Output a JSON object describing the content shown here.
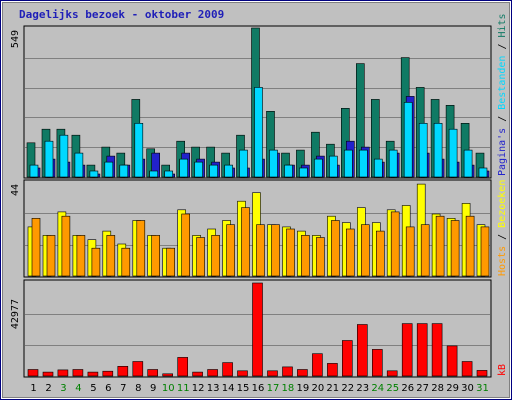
{
  "title": "Dagelijks bezoek - oktober 2009",
  "colors": {
    "frame_border": "#000080",
    "panel_bg": "#c0c0c0",
    "grid": "#808080",
    "weekday_label": "#000000",
    "weekend_label": "#008000",
    "hits": "#107a64",
    "pages": "#2222cc",
    "files": "#00d8ff",
    "visits": "#ffff00",
    "hosts": "#ff9900",
    "kb": "#ff0000",
    "legend_sep": "#000000"
  },
  "chart_data": [
    {
      "type": "bar",
      "panel": "top",
      "ymax_label": "549",
      "ylim": [
        0,
        549
      ],
      "grid": true,
      "categories": [
        "1",
        "2",
        "3",
        "4",
        "5",
        "6",
        "7",
        "8",
        "9",
        "10",
        "11",
        "12",
        "13",
        "14",
        "15",
        "16",
        "17",
        "18",
        "19",
        "20",
        "21",
        "22",
        "23",
        "24",
        "25",
        "26",
        "27",
        "28",
        "29",
        "30",
        "31"
      ],
      "weekend": [
        false,
        false,
        true,
        true,
        false,
        false,
        false,
        false,
        false,
        true,
        true,
        false,
        false,
        false,
        false,
        false,
        true,
        true,
        false,
        false,
        false,
        false,
        false,
        true,
        true,
        false,
        false,
        false,
        false,
        false,
        true
      ],
      "series": [
        {
          "name": "Hits",
          "color_key": "hits",
          "values": [
            126,
            176,
            176,
            154,
            44,
            110,
            88,
            286,
            104,
            44,
            132,
            110,
            110,
            88,
            154,
            549,
            242,
            88,
            99,
            165,
            121,
            253,
            418,
            286,
            132,
            440,
            330,
            286,
            264,
            198,
            88
          ]
        },
        {
          "name": "Pagina's",
          "color_key": "pages",
          "values": [
            33,
            66,
            55,
            44,
            11,
            77,
            44,
            66,
            88,
            11,
            88,
            66,
            55,
            33,
            33,
            66,
            88,
            44,
            44,
            77,
            44,
            132,
            110,
            55,
            88,
            297,
            88,
            66,
            55,
            44,
            22
          ]
        },
        {
          "name": "Bestanden",
          "color_key": "files",
          "values": [
            44,
            132,
            154,
            88,
            22,
            55,
            44,
            198,
            22,
            22,
            66,
            55,
            44,
            44,
            99,
            330,
            99,
            44,
            33,
            66,
            77,
            99,
            99,
            66,
            99,
            275,
            198,
            198,
            176,
            99,
            33
          ]
        }
      ],
      "legend": [
        "Hits",
        "Bestanden",
        "Pagina's"
      ]
    },
    {
      "type": "bar",
      "panel": "middle",
      "ymax_label": "44",
      "ylim": [
        0,
        44
      ],
      "grid": true,
      "categories": [
        "1",
        "2",
        "3",
        "4",
        "5",
        "6",
        "7",
        "8",
        "9",
        "10",
        "11",
        "12",
        "13",
        "14",
        "15",
        "16",
        "17",
        "18",
        "19",
        "20",
        "21",
        "22",
        "23",
        "24",
        "25",
        "26",
        "27",
        "28",
        "29",
        "30",
        "31"
      ],
      "series": [
        {
          "name": "Bezoeken",
          "color_key": "visits",
          "values": [
            23,
            19,
            30,
            19,
            17,
            21,
            15,
            26,
            19,
            13,
            31,
            19,
            22,
            26,
            35,
            39,
            24,
            23,
            21,
            19,
            28,
            25,
            32,
            25,
            31,
            33,
            43,
            29,
            27,
            34,
            24
          ]
        },
        {
          "name": "Hosts",
          "color_key": "hosts",
          "values": [
            27,
            19,
            28,
            19,
            13,
            19,
            13,
            26,
            19,
            13,
            29,
            18,
            19,
            24,
            32,
            24,
            24,
            22,
            19,
            18,
            26,
            22,
            24,
            21,
            30,
            23,
            24,
            28,
            26,
            28,
            23
          ]
        }
      ],
      "legend": [
        "Bezoeken",
        "Hosts"
      ]
    },
    {
      "type": "bar",
      "panel": "bottom",
      "ymax_label": "42977",
      "ylim": [
        0,
        42977
      ],
      "grid": true,
      "categories": [
        "1",
        "2",
        "3",
        "4",
        "5",
        "6",
        "7",
        "8",
        "9",
        "10",
        "11",
        "12",
        "13",
        "14",
        "15",
        "16",
        "17",
        "18",
        "19",
        "20",
        "21",
        "22",
        "23",
        "24",
        "25",
        "26",
        "27",
        "28",
        "29",
        "30",
        "31"
      ],
      "series": [
        {
          "name": "kB",
          "color_key": "kb",
          "values": [
            3000,
            1800,
            2800,
            3000,
            1800,
            2200,
            4500,
            6700,
            3000,
            1000,
            8600,
            1800,
            3000,
            6200,
            2400,
            42977,
            2400,
            4200,
            3000,
            10300,
            5800,
            16400,
            23800,
            12300,
            2400,
            24200,
            24200,
            24200,
            13900,
            6700,
            2600
          ]
        }
      ],
      "legend": [
        "kB"
      ]
    }
  ]
}
